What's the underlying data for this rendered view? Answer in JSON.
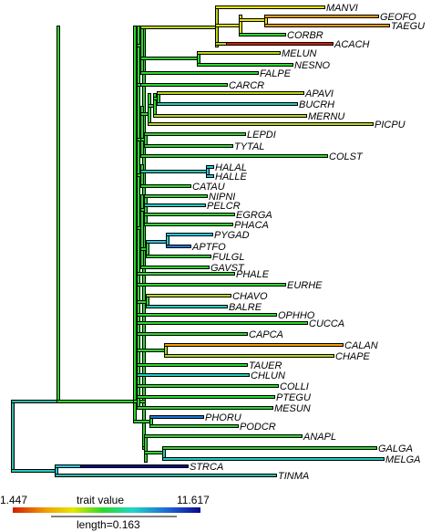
{
  "legend": {
    "min_label": "1.447",
    "title": "trait value",
    "max_label": "11.617",
    "length_label": "length=0.163",
    "colors": [
      "#d21e00",
      "#f0a000",
      "#e6e600",
      "#2cd82c",
      "#1fd6c8",
      "#1f6ad6",
      "#0a0a8c"
    ]
  },
  "tips": {
    "MANVI": "MANVI",
    "GEOFO": "GEOFO",
    "TAEGU": "TAEGU",
    "CORBR": "CORBR",
    "ACACH": "ACACH",
    "MELUN": "MELUN",
    "NESNO": "NESNO",
    "FALPE": "FALPE",
    "CARCR": "CARCR",
    "APAVI": "APAVI",
    "BUCRH": "BUCRH",
    "MERNU": "MERNU",
    "PICPU": "PICPU",
    "LEPDI": "LEPDI",
    "TYTAL": "TYTAL",
    "COLST": "COLST",
    "HALAL": "HALAL",
    "HALLE": "HALLE",
    "CATAU": "CATAU",
    "NIPNI": "NIPNI",
    "PELCR": "PELCR",
    "EGRGA": "EGRGA",
    "PHACA": "PHACA",
    "PYGAD": "PYGAD",
    "APTFO": "APTFO",
    "FULGL": "FULGL",
    "GAVST": "GAVST",
    "PHALE": "PHALE",
    "EURHE": "EURHE",
    "CHAVO": "CHAVO",
    "BALRE": "BALRE",
    "OPHHO": "OPHHO",
    "CUCCA": "CUCCA",
    "CAPCA": "CAPCA",
    "CALAN": "CALAN",
    "CHAPE": "CHAPE",
    "TAUER": "TAUER",
    "CHLUN": "CHLUN",
    "COLLI": "COLLI",
    "PTEGU": "PTEGU",
    "MESUN": "MESUN",
    "PHORU": "PHORU",
    "PODCR": "PODCR",
    "ANAPL": "ANAPL",
    "GALGA": "GALGA",
    "MELGA": "MELGA",
    "STRCA": "STRCA",
    "TINMA": "TINMA"
  }
}
